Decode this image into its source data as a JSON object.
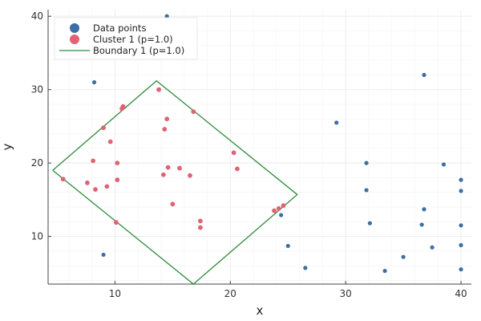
{
  "chart_data": {
    "type": "scatter",
    "title": "",
    "xlabel": "x",
    "ylabel": "y",
    "xlim": [
      4.2,
      40.9
    ],
    "ylim": [
      3.5,
      40.9
    ],
    "xticks": [
      10,
      20,
      30,
      40
    ],
    "yticks": [
      10,
      20,
      30,
      40
    ],
    "grid": true,
    "legend_position": "top-left",
    "colors": {
      "data_points": "#3c6fa5",
      "cluster": "#e26273",
      "boundary": "#2e8b3b",
      "grid": "#ebebeb",
      "axis": "#444444"
    },
    "series": [
      {
        "name": "Data points",
        "kind": "scatter",
        "points": [
          [
            14.5,
            40.0
          ],
          [
            8.2,
            31.0
          ],
          [
            36.8,
            32.0
          ],
          [
            29.2,
            25.5
          ],
          [
            31.8,
            20.0
          ],
          [
            38.5,
            19.8
          ],
          [
            31.8,
            16.3
          ],
          [
            40.0,
            17.7
          ],
          [
            40.0,
            16.2
          ],
          [
            36.8,
            13.7
          ],
          [
            24.4,
            12.9
          ],
          [
            32.1,
            11.8
          ],
          [
            36.6,
            11.6
          ],
          [
            40.0,
            11.5
          ],
          [
            25.0,
            8.7
          ],
          [
            37.5,
            8.5
          ],
          [
            40.0,
            8.8
          ],
          [
            35.0,
            7.2
          ],
          [
            9.0,
            7.5
          ],
          [
            26.5,
            5.7
          ],
          [
            33.4,
            5.3
          ],
          [
            40.0,
            5.5
          ]
        ]
      },
      {
        "name": "Cluster 1 (p=1.0)",
        "kind": "scatter",
        "points": [
          [
            13.8,
            30.0
          ],
          [
            10.6,
            27.4
          ],
          [
            10.7,
            27.7
          ],
          [
            16.8,
            27.0
          ],
          [
            14.5,
            26.0
          ],
          [
            9.0,
            24.8
          ],
          [
            14.3,
            24.6
          ],
          [
            9.6,
            22.9
          ],
          [
            20.3,
            21.4
          ],
          [
            8.1,
            20.3
          ],
          [
            10.2,
            20.0
          ],
          [
            20.6,
            19.2
          ],
          [
            14.6,
            19.4
          ],
          [
            15.6,
            19.3
          ],
          [
            14.2,
            18.4
          ],
          [
            16.5,
            18.3
          ],
          [
            10.2,
            17.7
          ],
          [
            5.5,
            17.8
          ],
          [
            7.6,
            17.3
          ],
          [
            9.3,
            16.8
          ],
          [
            8.3,
            16.4
          ],
          [
            15.0,
            14.4
          ],
          [
            24.6,
            14.2
          ],
          [
            24.2,
            13.8
          ],
          [
            23.8,
            13.5
          ],
          [
            17.4,
            12.1
          ],
          [
            10.1,
            11.9
          ],
          [
            17.4,
            11.2
          ]
        ]
      },
      {
        "name": "Boundary 1 (p=1.0)",
        "kind": "line",
        "points": [
          [
            4.6,
            19.0
          ],
          [
            13.6,
            31.2
          ],
          [
            25.8,
            15.7
          ],
          [
            16.8,
            3.5
          ],
          [
            4.6,
            19.0
          ]
        ]
      }
    ]
  }
}
